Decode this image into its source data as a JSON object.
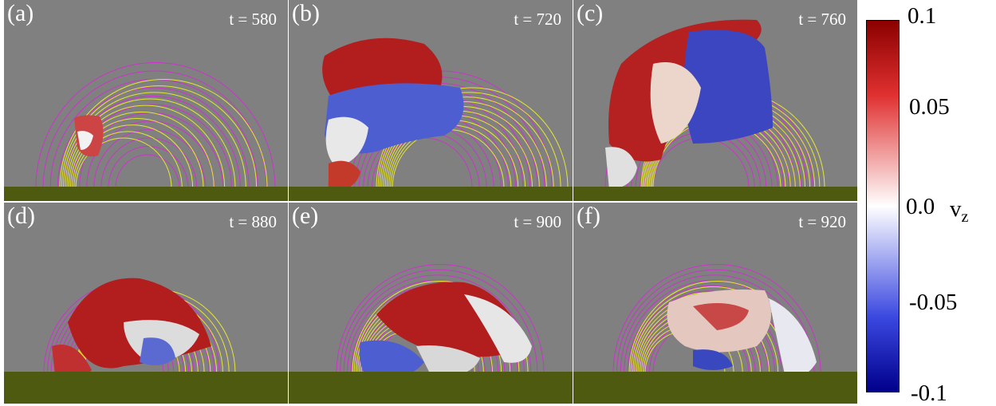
{
  "panels": [
    {
      "label": "(a)",
      "time": "t = 580"
    },
    {
      "label": "(b)",
      "time": "t = 720"
    },
    {
      "label": "(c)",
      "time": "t = 760"
    },
    {
      "label": "(d)",
      "time": "t = 880"
    },
    {
      "label": "(e)",
      "time": "t = 900"
    },
    {
      "label": "(f)",
      "time": "t = 920"
    }
  ],
  "colorbar": {
    "title": "v",
    "title_sub": "z",
    "ticks": [
      "0.1",
      "0.05",
      "0.0",
      "-0.05",
      "-0.1"
    ],
    "colors": {
      "max": "#8b0000",
      "mid": "#ffffff",
      "min": "#00008b"
    }
  },
  "colors": {
    "background": "#808080",
    "field_magenta": "#cc33cc",
    "field_yellow": "#e6e633",
    "ground": "#4e5a10"
  }
}
